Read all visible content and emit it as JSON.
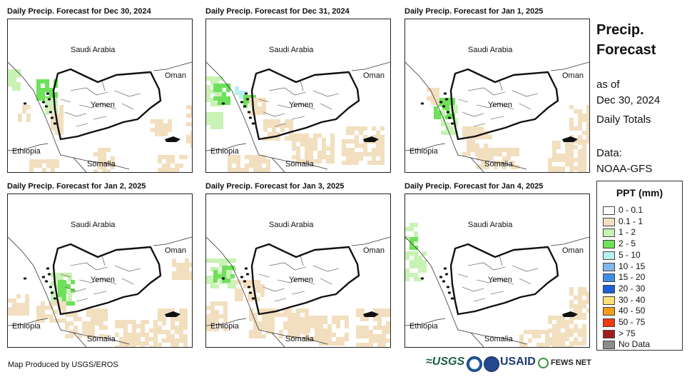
{
  "panels": [
    {
      "title": "Daily Precip. Forecast for Dec 30, 2024"
    },
    {
      "title": "Daily Precip. Forecast for Dec 31, 2024"
    },
    {
      "title": "Daily Precip. Forecast for Jan 1, 2025"
    },
    {
      "title": "Daily Precip. Forecast for Jan 2, 2025"
    },
    {
      "title": "Daily Precip. Forecast for Jan 3, 2025"
    },
    {
      "title": "Daily Precip. Forecast for Jan 4, 2025"
    }
  ],
  "map_labels": {
    "saudi": "Saudi Arabia",
    "oman": "Oman",
    "yemen": "Yemen",
    "ethiopia": "Ethiopia",
    "somalia": "Somalia"
  },
  "sidebar": {
    "heading_line1": "Precip.",
    "heading_line2": "Forecast",
    "as_of": "as of",
    "date": "Dec 30, 2024",
    "totals": "Daily Totals",
    "data_label": "Data:",
    "data_source": "NOAA-GFS"
  },
  "legend": {
    "title": "PPT (mm)",
    "items": [
      {
        "label": "0 - 0.1",
        "color": "#ffffff"
      },
      {
        "label": "0.1 - 1",
        "color": "#f2dfbf"
      },
      {
        "label": "1 - 2",
        "color": "#c9f2b5"
      },
      {
        "label": "2 - 5",
        "color": "#6fe05a"
      },
      {
        "label": "5 - 10",
        "color": "#b8f0ee"
      },
      {
        "label": "10 - 15",
        "color": "#7fb7ea"
      },
      {
        "label": "15 - 20",
        "color": "#3e8ee8"
      },
      {
        "label": "20 - 30",
        "color": "#1d5fd6"
      },
      {
        "label": "30 - 40",
        "color": "#ffe07a"
      },
      {
        "label": "40 - 50",
        "color": "#f59e1b"
      },
      {
        "label": "50 - 75",
        "color": "#f03a10"
      },
      {
        "label": "> 75",
        "color": "#a31c1c"
      },
      {
        "label": "No Data",
        "color": "#8c8c8c"
      }
    ]
  },
  "credit": "Map Produced by USGS/EROS",
  "logos": {
    "usgs": "≈USGS",
    "noaa_icon": "noaa-logo-icon",
    "dhs_icon": "dhs-seal-icon",
    "usaid": "USAID",
    "fews_icon": "fews-net-globe-icon",
    "fews": "FEWS NET"
  }
}
